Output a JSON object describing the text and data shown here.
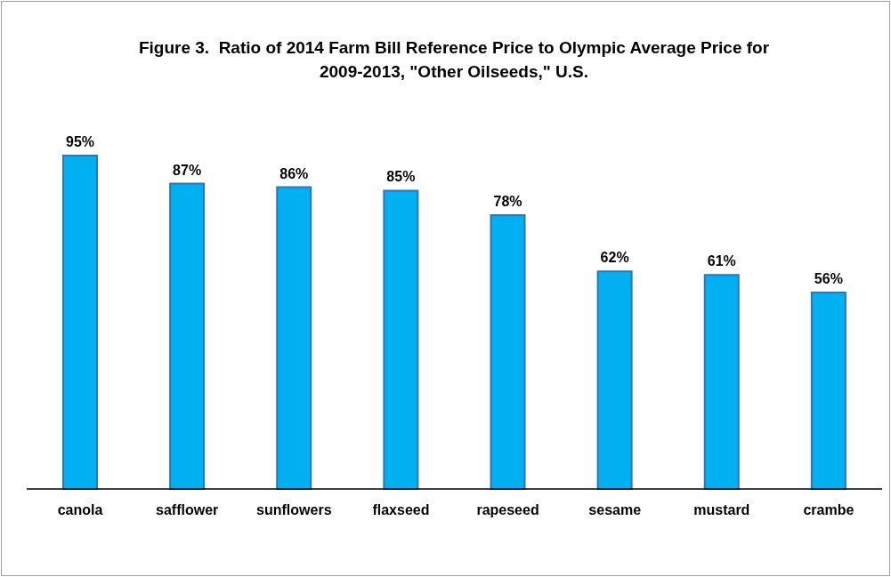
{
  "chart_data": {
    "type": "bar",
    "title": "Figure 3.  Ratio of 2014 Farm Bill Reference Price to Olympic Average Price for 2009-2013, \"Other Oilseeds,\" U.S.",
    "categories": [
      "canola",
      "safflower",
      "sunflowers",
      "flaxseed",
      "rapeseed",
      "sesame",
      "mustard",
      "crambe"
    ],
    "values": [
      95,
      87,
      86,
      85,
      78,
      62,
      61,
      56
    ],
    "value_labels": [
      "95%",
      "87%",
      "86%",
      "85%",
      "78%",
      "62%",
      "61%",
      "56%"
    ],
    "color": "#00b0f0",
    "grid": false,
    "legend": false
  }
}
